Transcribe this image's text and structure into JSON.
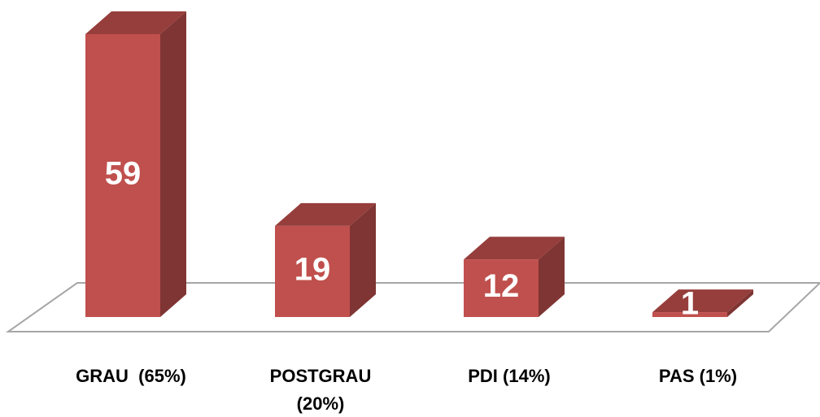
{
  "chart_data": {
    "type": "bar3d",
    "categories": [
      "GRAU  (65%)",
      "POSTGRAU (20%)",
      "PDI (14%)",
      "PAS (1%)"
    ],
    "values": [
      59,
      19,
      12,
      1
    ],
    "color": "#c0504d"
  }
}
